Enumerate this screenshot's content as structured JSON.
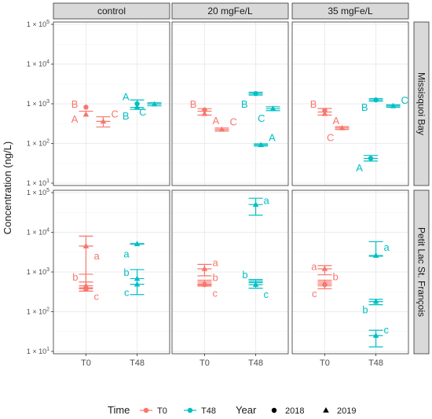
{
  "chart_data": {
    "type": "scatter",
    "title": "",
    "ylabel": "Concentration (ng/L)",
    "xlabel": "",
    "y_scale": "log10",
    "ylim": [
      10,
      100000
    ],
    "y_ticks": [
      {
        "value": 10,
        "base": "1",
        "exp": "1"
      },
      {
        "value": 100,
        "base": "1",
        "exp": "2"
      },
      {
        "value": 1000,
        "base": "1",
        "exp": "3"
      },
      {
        "value": 10000,
        "base": "1",
        "exp": "4"
      },
      {
        "value": 100000,
        "base": "1",
        "exp": "5"
      }
    ],
    "y_tick_prefix": "1 × 10",
    "x_categories": [
      "T0",
      "T48"
    ],
    "columns": [
      "control",
      "20 mgFe/L",
      "35 mgFe/L"
    ],
    "rows": [
      "Missisquoi Bay",
      "Petit Lac St. François"
    ],
    "colors": {
      "T0": "#F8766D",
      "T48": "#00BFC4"
    },
    "panels": [
      {
        "col": 0,
        "row": 0,
        "groups": [
          {
            "time": "T0",
            "pos": 0,
            "mean": 650,
            "lo": 420,
            "hi": 1000,
            "errorbar": false,
            "points": [
              {
                "year": "2018",
                "y": 820
              },
              {
                "year": "2019",
                "y": 540
              }
            ],
            "labels": [
              {
                "text": "B",
                "y": 1000,
                "side": "left"
              },
              {
                "text": "A",
                "y": 420,
                "side": "left"
              }
            ]
          },
          {
            "time": "T0",
            "pos": 1,
            "mean": 360,
            "lo": 260,
            "hi": 470,
            "errorbar": true,
            "points": [
              {
                "year": "2019",
                "y": 360
              }
            ],
            "labels": [
              {
                "text": "C",
                "y": 560,
                "side": "right"
              }
            ]
          },
          {
            "time": "T48",
            "pos": 2,
            "mean": 810,
            "lo": 720,
            "hi": 1250,
            "errorbar": true,
            "points": [
              {
                "year": "2018",
                "y": 1000
              },
              {
                "year": "2019",
                "y": 820
              }
            ],
            "labels": [
              {
                "text": "A",
                "y": 1550,
                "side": "left"
              },
              {
                "text": "B",
                "y": 500,
                "side": "left"
              }
            ]
          },
          {
            "time": "T48",
            "pos": 3,
            "mean": 980,
            "lo": 890,
            "hi": 1060,
            "errorbar": true,
            "points": [
              {
                "year": "2019",
                "y": 980
              }
            ],
            "labels": [
              {
                "text": "C",
                "y": 640,
                "side": "left"
              }
            ]
          }
        ]
      },
      {
        "col": 1,
        "row": 0,
        "groups": [
          {
            "time": "T0",
            "pos": 0,
            "mean": 650,
            "lo": 520,
            "hi": 750,
            "errorbar": true,
            "points": [
              {
                "year": "2018",
                "y": 700
              },
              {
                "year": "2019",
                "y": 560
              }
            ],
            "labels": [
              {
                "text": "B",
                "y": 1000,
                "side": "left"
              },
              {
                "text": "A",
                "y": 380,
                "side": "right"
              }
            ]
          },
          {
            "time": "T0",
            "pos": 1,
            "mean": 225,
            "lo": 205,
            "hi": 245,
            "errorbar": true,
            "points": [
              {
                "year": "2019",
                "y": 225
              }
            ],
            "labels": [
              {
                "text": "C",
                "y": 360,
                "side": "right"
              }
            ]
          },
          {
            "time": "T48",
            "pos": 2,
            "mean": 1800,
            "lo": 1650,
            "hi": 1950,
            "errorbar": true,
            "points": [
              {
                "year": "2018",
                "y": 1800
              }
            ],
            "labels": [
              {
                "text": "B",
                "y": 1000,
                "side": "left"
              }
            ]
          },
          {
            "time": "T48",
            "pos": 3,
            "mean": 750,
            "lo": 670,
            "hi": 840,
            "errorbar": true,
            "points": [
              {
                "year": "2019",
                "y": 750
              }
            ],
            "labels": [
              {
                "text": "C",
                "y": 440,
                "side": "left"
              }
            ]
          },
          {
            "time": "T48",
            "pos": 2.3,
            "mean": 92,
            "lo": 86,
            "hi": 98,
            "errorbar": true,
            "points": [
              {
                "year": "2019",
                "y": 92
              }
            ],
            "labels": [
              {
                "text": "A",
                "y": 145,
                "side": "right"
              }
            ]
          }
        ]
      },
      {
        "col": 2,
        "row": 0,
        "groups": [
          {
            "time": "T0",
            "pos": 0,
            "mean": 620,
            "lo": 520,
            "hi": 760,
            "errorbar": true,
            "points": [
              {
                "year": "2018",
                "y": 680
              },
              {
                "year": "2019",
                "y": 560
              }
            ],
            "labels": [
              {
                "text": "B",
                "y": 1000,
                "side": "left"
              },
              {
                "text": "A",
                "y": 380,
                "side": "right"
              }
            ]
          },
          {
            "time": "T0",
            "pos": 1,
            "mean": 245,
            "lo": 225,
            "hi": 265,
            "errorbar": true,
            "points": [
              {
                "year": "2019",
                "y": 245
              }
            ],
            "labels": [
              {
                "text": "C",
                "y": 145,
                "side": "left"
              }
            ]
          },
          {
            "time": "T48",
            "pos": 2,
            "mean": 1250,
            "lo": 1150,
            "hi": 1350,
            "errorbar": true,
            "points": [
              {
                "year": "2018",
                "y": 1250
              }
            ],
            "labels": [
              {
                "text": "B",
                "y": 830,
                "side": "left"
              }
            ]
          },
          {
            "time": "T48",
            "pos": 3,
            "mean": 880,
            "lo": 820,
            "hi": 940,
            "errorbar": true,
            "points": [
              {
                "year": "2019",
                "y": 880
              }
            ],
            "labels": [
              {
                "text": "C",
                "y": 1250,
                "side": "right"
              }
            ]
          },
          {
            "time": "T48",
            "pos": 1.7,
            "mean": 42,
            "lo": 36,
            "hi": 50,
            "errorbar": true,
            "points": [
              {
                "year": "2018",
                "y": 42
              }
            ],
            "labels": [
              {
                "text": "A",
                "y": 25,
                "side": "left"
              }
            ]
          }
        ]
      },
      {
        "col": 0,
        "row": 1,
        "groups": [
          {
            "time": "T0",
            "pos": 0,
            "mean": 4500,
            "lo": 330,
            "hi": 8000,
            "errorbar": true,
            "points": [
              {
                "year": "2019",
                "y": 4500
              }
            ],
            "labels": [
              {
                "text": "a",
                "y": 2600,
                "side": "right"
              }
            ]
          },
          {
            "time": "T0",
            "pos": 0,
            "mean": 560,
            "lo": 400,
            "hi": 880,
            "errorbar": true,
            "points": [],
            "labels": [
              {
                "text": "b",
                "y": 760,
                "side": "left"
              }
            ]
          },
          {
            "time": "T0",
            "pos": 0,
            "mean": 380,
            "lo": 330,
            "hi": 450,
            "errorbar": true,
            "points": [
              {
                "year": "2019",
                "y": 450
              },
              {
                "year": "2018",
                "y": 370
              }
            ],
            "labels": [
              {
                "text": "c",
                "y": 250,
                "side": "right"
              }
            ]
          },
          {
            "time": "T48",
            "pos": 2,
            "mean": 5100,
            "lo": 5000,
            "hi": 5200,
            "errorbar": true,
            "points": [
              {
                "year": "2019",
                "y": 5100
              }
            ],
            "labels": [
              {
                "text": "a",
                "y": 2900,
                "side": "left"
              }
            ]
          },
          {
            "time": "T48",
            "pos": 2,
            "mean": 680,
            "lo": 270,
            "hi": 1150,
            "errorbar": true,
            "points": [
              {
                "year": "2019",
                "y": 680
              }
            ],
            "labels": [
              {
                "text": "b",
                "y": 1000,
                "side": "left"
              }
            ]
          },
          {
            "time": "T48",
            "pos": 2,
            "mean": 490,
            "lo": 440,
            "hi": 540,
            "errorbar": false,
            "points": [
              {
                "year": "2019",
                "y": 490
              }
            ],
            "labels": [
              {
                "text": "c",
                "y": 310,
                "side": "left"
              }
            ]
          }
        ]
      },
      {
        "col": 1,
        "row": 1,
        "groups": [
          {
            "time": "T0",
            "pos": 0,
            "mean": 1200,
            "lo": 800,
            "hi": 1550,
            "errorbar": true,
            "points": [
              {
                "year": "2019",
                "y": 1200
              }
            ],
            "labels": [
              {
                "text": "a",
                "y": 1750,
                "side": "right"
              }
            ]
          },
          {
            "time": "T0",
            "pos": 0,
            "mean": 560,
            "lo": 500,
            "hi": 620,
            "errorbar": true,
            "points": [],
            "labels": [
              {
                "text": "b",
                "y": 740,
                "side": "right"
              }
            ]
          },
          {
            "time": "T0",
            "pos": 0,
            "mean": 470,
            "lo": 440,
            "hi": 500,
            "errorbar": true,
            "points": [
              {
                "year": "2018",
                "y": 480
              }
            ],
            "labels": [
              {
                "text": "c",
                "y": 300,
                "side": "right"
              }
            ]
          },
          {
            "time": "T48",
            "pos": 2,
            "mean": 50000,
            "lo": 27000,
            "hi": 72000,
            "errorbar": true,
            "points": [
              {
                "year": "2019",
                "y": 50000
              }
            ],
            "labels": [
              {
                "text": "a",
                "y": 65000,
                "side": "right"
              }
            ]
          },
          {
            "time": "T48",
            "pos": 2,
            "mean": 600,
            "lo": 550,
            "hi": 650,
            "errorbar": true,
            "points": [],
            "labels": [
              {
                "text": "b",
                "y": 870,
                "side": "left"
              }
            ]
          },
          {
            "time": "T48",
            "pos": 2,
            "mean": 480,
            "lo": 390,
            "hi": 540,
            "errorbar": true,
            "points": [
              {
                "year": "2019",
                "y": 480
              }
            ],
            "labels": [
              {
                "text": "c",
                "y": 280,
                "side": "right"
              }
            ]
          }
        ]
      },
      {
        "col": 2,
        "row": 1,
        "groups": [
          {
            "time": "T0",
            "pos": 0,
            "mean": 1200,
            "lo": 850,
            "hi": 1450,
            "errorbar": true,
            "points": [
              {
                "year": "2019",
                "y": 1200
              }
            ],
            "labels": [
              {
                "text": "a",
                "y": 1400,
                "side": "left"
              }
            ]
          },
          {
            "time": "T0",
            "pos": 0,
            "mean": 560,
            "lo": 500,
            "hi": 620,
            "errorbar": true,
            "points": [],
            "labels": [
              {
                "text": "b",
                "y": 780,
                "side": "right"
              }
            ]
          },
          {
            "time": "T0",
            "pos": 0,
            "mean": 450,
            "lo": 380,
            "hi": 500,
            "errorbar": true,
            "points": [
              {
                "year": "2018",
                "y": 480
              }
            ],
            "labels": [
              {
                "text": "c",
                "y": 290,
                "side": "left"
              }
            ]
          },
          {
            "time": "T48",
            "pos": 2,
            "mean": 2600,
            "lo": 2500,
            "hi": 5800,
            "errorbar": true,
            "points": [
              {
                "year": "2019",
                "y": 2600
              }
            ],
            "labels": [
              {
                "text": "a",
                "y": 4300,
                "side": "right"
              }
            ]
          },
          {
            "time": "T48",
            "pos": 2,
            "mean": 180,
            "lo": 150,
            "hi": 205,
            "errorbar": true,
            "points": [
              {
                "year": "2019",
                "y": 180
              }
            ],
            "labels": [
              {
                "text": "b",
                "y": 115,
                "side": "left"
              }
            ]
          },
          {
            "time": "T48",
            "pos": 2,
            "mean": 25,
            "lo": 13,
            "hi": 34,
            "errorbar": true,
            "points": [
              {
                "year": "2019",
                "y": 25
              }
            ],
            "labels": [
              {
                "text": "c",
                "y": 36,
                "side": "right"
              }
            ]
          }
        ]
      }
    ],
    "legend": {
      "placement": "bottom",
      "time_title": "Time",
      "time_items": [
        {
          "label": "T0",
          "color": "#F8766D"
        },
        {
          "label": "T48",
          "color": "#00BFC4"
        }
      ],
      "year_title": "Year",
      "year_items": [
        {
          "label": "2018",
          "shape": "circle"
        },
        {
          "label": "2019",
          "shape": "triangle"
        }
      ]
    }
  }
}
